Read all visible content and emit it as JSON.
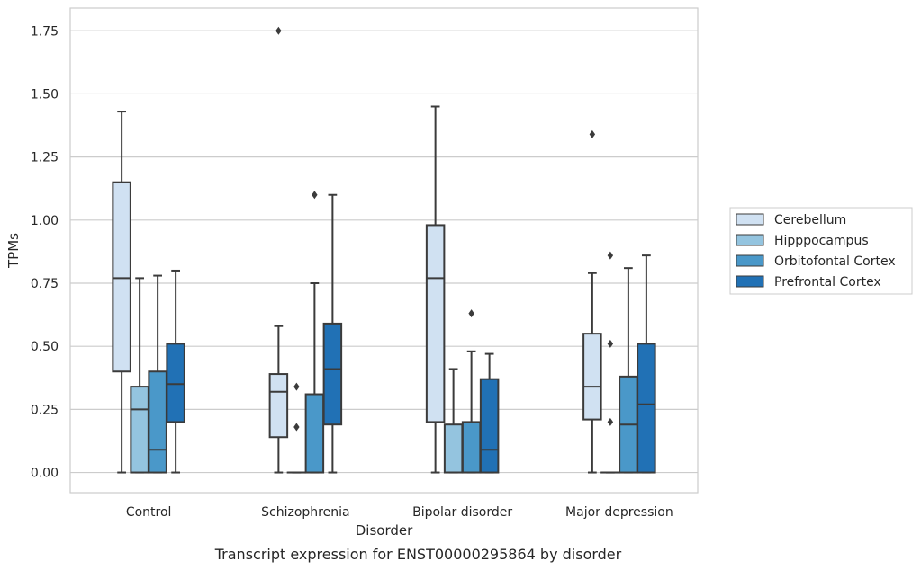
{
  "caption": "Transcript expression for ENST00000295864 by disorder",
  "chart_data": {
    "type": "boxplot",
    "title": "",
    "xlabel": "Disorder",
    "ylabel": "TPMs",
    "ylim": [
      -0.08,
      1.84
    ],
    "yticks": [
      0.0,
      0.25,
      0.5,
      0.75,
      1.0,
      1.25,
      1.5,
      1.75
    ],
    "ytick_labels": [
      "0.00",
      "0.25",
      "0.50",
      "0.75",
      "1.00",
      "1.25",
      "1.50",
      "1.75"
    ],
    "grid": "horizontal",
    "legend_position": "right",
    "categories": [
      "Control",
      "Schizophrenia",
      "Bipolar disorder",
      "Major depression"
    ],
    "series": [
      {
        "name": "Cerebellum",
        "color": "#d0e1f2",
        "boxes": [
          {
            "whislo": 0.0,
            "q1": 0.4,
            "med": 0.77,
            "q3": 1.15,
            "whishi": 1.43,
            "fliers": []
          },
          {
            "whislo": 0.0,
            "q1": 0.14,
            "med": 0.32,
            "q3": 0.39,
            "whishi": 0.58,
            "fliers": [
              1.75
            ]
          },
          {
            "whislo": 0.0,
            "q1": 0.2,
            "med": 0.77,
            "q3": 0.98,
            "whishi": 1.45,
            "fliers": []
          },
          {
            "whislo": 0.0,
            "q1": 0.21,
            "med": 0.34,
            "q3": 0.55,
            "whishi": 0.79,
            "fliers": [
              1.34
            ]
          }
        ]
      },
      {
        "name": "Hipppocampus",
        "color": "#94c4df",
        "boxes": [
          {
            "whislo": 0.0,
            "q1": 0.0,
            "med": 0.25,
            "q3": 0.34,
            "whishi": 0.77,
            "fliers": []
          },
          {
            "whislo": 0.0,
            "q1": 0.0,
            "med": 0.0,
            "q3": 0.0,
            "whishi": 0.0,
            "fliers": [
              0.34,
              0.18
            ]
          },
          {
            "whislo": 0.0,
            "q1": 0.0,
            "med": 0.0,
            "q3": 0.19,
            "whishi": 0.41,
            "fliers": []
          },
          {
            "whislo": 0.0,
            "q1": 0.0,
            "med": 0.0,
            "q3": 0.0,
            "whishi": 0.0,
            "fliers": [
              0.86,
              0.51,
              0.2
            ]
          }
        ]
      },
      {
        "name": "Orbitofontal Cortex",
        "color": "#4a98c9",
        "boxes": [
          {
            "whislo": 0.0,
            "q1": 0.0,
            "med": 0.09,
            "q3": 0.4,
            "whishi": 0.78,
            "fliers": []
          },
          {
            "whislo": 0.0,
            "q1": 0.0,
            "med": 0.0,
            "q3": 0.31,
            "whishi": 0.75,
            "fliers": [
              1.1
            ]
          },
          {
            "whislo": 0.0,
            "q1": 0.0,
            "med": 0.0,
            "q3": 0.2,
            "whishi": 0.48,
            "fliers": [
              0.63
            ]
          },
          {
            "whislo": 0.0,
            "q1": 0.0,
            "med": 0.19,
            "q3": 0.38,
            "whishi": 0.81,
            "fliers": []
          }
        ]
      },
      {
        "name": "Prefrontal Cortex",
        "color": "#2171b5",
        "boxes": [
          {
            "whislo": 0.0,
            "q1": 0.2,
            "med": 0.35,
            "q3": 0.51,
            "whishi": 0.8,
            "fliers": []
          },
          {
            "whislo": 0.0,
            "q1": 0.19,
            "med": 0.41,
            "q3": 0.59,
            "whishi": 1.1,
            "fliers": []
          },
          {
            "whislo": 0.0,
            "q1": 0.0,
            "med": 0.09,
            "q3": 0.37,
            "whishi": 0.47,
            "fliers": []
          },
          {
            "whislo": 0.0,
            "q1": 0.0,
            "med": 0.27,
            "q3": 0.51,
            "whishi": 0.86,
            "fliers": []
          }
        ]
      }
    ]
  }
}
